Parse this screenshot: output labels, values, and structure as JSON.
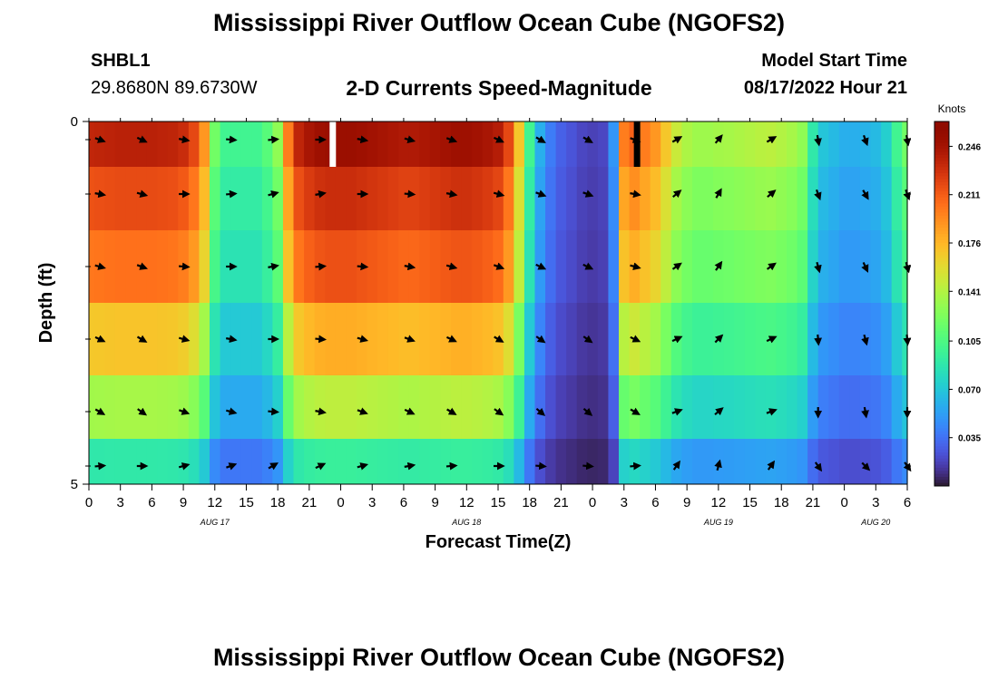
{
  "header": {
    "title": "Mississippi River Outflow Ocean Cube (NGOFS2)",
    "station": "SHBL1",
    "location": "29.8680N  89.6730W",
    "subtitle": "2-D Currents Speed-Magnitude",
    "model_start_label": "Model Start Time",
    "model_start_value": "08/17/2022 Hour 21"
  },
  "footer": {
    "title_repeat": "Mississippi River Outflow Ocean Cube (NGOFS2)"
  },
  "chart_data": {
    "type": "heatmap",
    "title": "2-D Currents Speed-Magnitude",
    "xlabel": "Forecast Time(Z)",
    "ylabel": "Depth (ft)",
    "y_ticks": [
      "0",
      "5"
    ],
    "ylim": [
      0,
      5
    ],
    "x_tick_labels": [
      "0",
      "3",
      "6",
      "9",
      "12",
      "15",
      "18",
      "21",
      "0",
      "3",
      "6",
      "9",
      "12",
      "15",
      "18",
      "21",
      "0",
      "3",
      "6",
      "9",
      "12",
      "15",
      "18",
      "21",
      "0",
      "3",
      "6"
    ],
    "x_range_hours": [
      0,
      78
    ],
    "date_labels": [
      {
        "text": "AUG 17",
        "hour": 12
      },
      {
        "text": "AUG 18",
        "hour": 36
      },
      {
        "text": "AUG 19",
        "hour": 60
      },
      {
        "text": "AUG 20",
        "hour": 75
      }
    ],
    "colorbar": {
      "unit": "Knots",
      "ticks": [
        "0.246",
        "0.211",
        "0.176",
        "0.141",
        "0.105",
        "0.070",
        "0.035"
      ],
      "tick_values": [
        0.246,
        0.211,
        0.176,
        0.141,
        0.105,
        0.07,
        0.035
      ],
      "range": [
        0.0,
        0.264
      ],
      "colormap": "turbo"
    },
    "depth_layers": [
      0.25,
      1.0,
      2.0,
      3.0,
      4.0,
      4.75
    ],
    "hourly_speed_profile": [
      0.235,
      0.236,
      0.237,
      0.238,
      0.238,
      0.238,
      0.238,
      0.237,
      0.236,
      0.232,
      0.22,
      0.19,
      0.12,
      0.1,
      0.1,
      0.1,
      0.1,
      0.11,
      0.13,
      0.2,
      0.236,
      0.245,
      0.25,
      0.252,
      0.252,
      0.252,
      0.25,
      0.248,
      0.246,
      0.244,
      0.242,
      0.242,
      0.244,
      0.246,
      0.248,
      0.25,
      0.25,
      0.248,
      0.245,
      0.24,
      0.22,
      0.17,
      0.1,
      0.06,
      0.04,
      0.03,
      0.025,
      0.02,
      0.018,
      0.02,
      0.05,
      0.2,
      0.21,
      0.2,
      0.19,
      0.17,
      0.15,
      0.14,
      0.135,
      0.135,
      0.137,
      0.138,
      0.14,
      0.142,
      0.144,
      0.145,
      0.142,
      0.138,
      0.13,
      0.09,
      0.07,
      0.065,
      0.06,
      0.06,
      0.062,
      0.065,
      0.075,
      0.1,
      0.12
    ],
    "layer_factors": [
      1.0,
      0.92,
      0.86,
      0.72,
      0.58,
      0.38
    ],
    "layer_offsets": [
      0.0,
      0.0,
      0.0,
      0.0,
      0.0,
      0.0
    ],
    "missing_cells": [
      {
        "hour": 23.2,
        "layer": 0,
        "value": "white"
      },
      {
        "hour": 52.2,
        "layer": 0,
        "value": "black"
      }
    ],
    "vectors": {
      "hours": [
        1,
        5,
        9,
        13.5,
        17.5,
        22,
        26,
        30.5,
        34.5,
        39,
        43,
        47.5,
        52,
        56,
        60,
        65,
        69.5,
        74,
        78
      ],
      "angles_deg_by_hour": [
        20,
        25,
        10,
        5,
        -5,
        0,
        10,
        15,
        20,
        25,
        30,
        30,
        20,
        -30,
        -50,
        -30,
        80,
        70,
        80
      ],
      "angle_by_layer_shift": [
        0,
        -10,
        -5,
        5,
        10,
        -25
      ]
    }
  }
}
